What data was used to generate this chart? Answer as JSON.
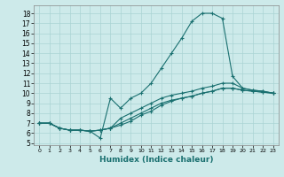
{
  "title": "",
  "xlabel": "Humidex (Indice chaleur)",
  "bg_color": "#cdeaea",
  "line_color": "#1a7070",
  "grid_color": "#aad4d4",
  "xlim": [
    -0.5,
    23.5
  ],
  "ylim": [
    4.8,
    18.8
  ],
  "xticks": [
    0,
    1,
    2,
    3,
    4,
    5,
    6,
    7,
    8,
    9,
    10,
    11,
    12,
    13,
    14,
    15,
    16,
    17,
    18,
    19,
    20,
    21,
    22,
    23
  ],
  "yticks": [
    5,
    6,
    7,
    8,
    9,
    10,
    11,
    12,
    13,
    14,
    15,
    16,
    17,
    18
  ],
  "lines": [
    {
      "x": [
        0,
        1,
        2,
        3,
        4,
        5,
        6,
        7,
        8,
        9,
        10,
        11,
        12,
        13,
        14,
        15,
        16,
        17,
        18,
        19,
        20,
        21,
        22,
        23
      ],
      "y": [
        7.0,
        7.0,
        6.5,
        6.3,
        6.3,
        6.2,
        5.5,
        9.5,
        8.5,
        9.5,
        10.0,
        11.0,
        12.5,
        14.0,
        15.5,
        17.2,
        18.0,
        18.0,
        17.5,
        11.7,
        10.5,
        10.3,
        10.2,
        10.0
      ]
    },
    {
      "x": [
        0,
        1,
        2,
        3,
        4,
        5,
        6,
        7,
        8,
        9,
        10,
        11,
        12,
        13,
        14,
        15,
        16,
        17,
        18,
        19,
        20,
        21,
        22,
        23
      ],
      "y": [
        7.0,
        7.0,
        6.5,
        6.3,
        6.3,
        6.2,
        6.3,
        6.5,
        7.5,
        8.0,
        8.5,
        9.0,
        9.5,
        9.8,
        10.0,
        10.2,
        10.5,
        10.7,
        11.0,
        11.0,
        10.5,
        10.3,
        10.2,
        10.0
      ]
    },
    {
      "x": [
        0,
        1,
        2,
        3,
        4,
        5,
        6,
        7,
        8,
        9,
        10,
        11,
        12,
        13,
        14,
        15,
        16,
        17,
        18,
        19,
        20,
        21,
        22,
        23
      ],
      "y": [
        7.0,
        7.0,
        6.5,
        6.3,
        6.3,
        6.2,
        6.3,
        6.5,
        7.0,
        7.5,
        8.0,
        8.5,
        9.0,
        9.3,
        9.5,
        9.7,
        10.0,
        10.2,
        10.5,
        10.5,
        10.3,
        10.2,
        10.1,
        10.0
      ]
    },
    {
      "x": [
        0,
        1,
        2,
        3,
        4,
        5,
        6,
        7,
        8,
        9,
        10,
        11,
        12,
        13,
        14,
        15,
        16,
        17,
        18,
        19,
        20,
        21,
        22,
        23
      ],
      "y": [
        7.0,
        7.0,
        6.5,
        6.3,
        6.3,
        6.2,
        6.3,
        6.5,
        6.8,
        7.2,
        7.8,
        8.2,
        8.8,
        9.2,
        9.5,
        9.7,
        10.0,
        10.2,
        10.5,
        10.5,
        10.3,
        10.2,
        10.1,
        10.0
      ]
    }
  ]
}
